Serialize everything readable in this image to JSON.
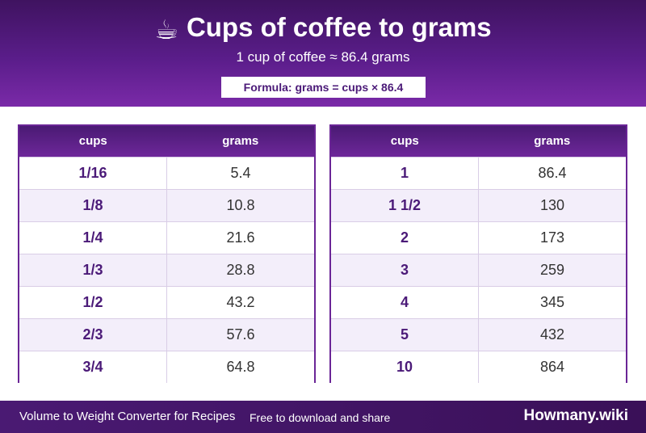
{
  "header": {
    "icon": "coffee-cup-icon",
    "icon_glyph": "☕",
    "title": "Cups of coffee to grams",
    "subtitle": "1 cup of coffee ≈ 86.4 grams",
    "formula": "Formula: grams = cups × 86.4"
  },
  "tables": [
    {
      "col1": "cups",
      "col2": "grams",
      "rows": [
        {
          "cups": "1/16",
          "grams": "5.4"
        },
        {
          "cups": "1/8",
          "grams": "10.8"
        },
        {
          "cups": "1/4",
          "grams": "21.6"
        },
        {
          "cups": "1/3",
          "grams": "28.8"
        },
        {
          "cups": "1/2",
          "grams": "43.2"
        },
        {
          "cups": "2/3",
          "grams": "57.6"
        },
        {
          "cups": "3/4",
          "grams": "64.8"
        }
      ]
    },
    {
      "col1": "cups",
      "col2": "grams",
      "rows": [
        {
          "cups": "1",
          "grams": "86.4"
        },
        {
          "cups": "1 1/2",
          "grams": "130"
        },
        {
          "cups": "2",
          "grams": "173"
        },
        {
          "cups": "3",
          "grams": "259"
        },
        {
          "cups": "4",
          "grams": "345"
        },
        {
          "cups": "5",
          "grams": "432"
        },
        {
          "cups": "10",
          "grams": "864"
        }
      ]
    }
  ],
  "footer": {
    "left": "Volume to Weight Converter for Recipes",
    "middle": "Free to download and share",
    "brand": "Howmany.wiki"
  }
}
